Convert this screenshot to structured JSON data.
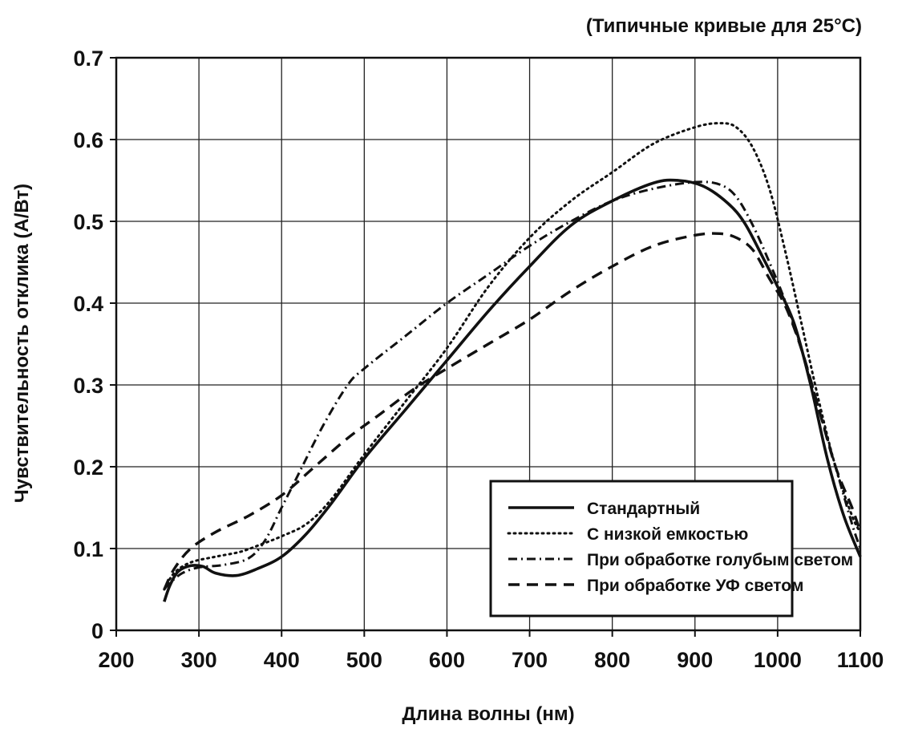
{
  "chart_data": {
    "type": "line",
    "note": "(Типичные кривые для 25°C)",
    "xlabel": "Длина волны (нм)",
    "ylabel": "Чувствительность отклика (А/Вт)",
    "xlim": [
      200,
      1100
    ],
    "ylim": [
      0,
      0.7
    ],
    "x_ticks": [
      "200",
      "300",
      "400",
      "500",
      "600",
      "700",
      "800",
      "900",
      "1000",
      "1100"
    ],
    "y_ticks": [
      "0",
      "0.1",
      "0.2",
      "0.3",
      "0.4",
      "0.5",
      "0.6",
      "0.7"
    ],
    "grid": true,
    "legend_position": "bottom-right",
    "series": [
      {
        "name": "Стандартный",
        "style": "solid",
        "color": "#111111",
        "x": [
          258,
          265,
          275,
          290,
          305,
          320,
          345,
          370,
          400,
          430,
          460,
          500,
          550,
          600,
          650,
          700,
          750,
          800,
          850,
          880,
          910,
          940,
          960,
          980,
          1000,
          1020,
          1040,
          1060,
          1080,
          1100
        ],
        "y": [
          0.035,
          0.055,
          0.072,
          0.079,
          0.078,
          0.07,
          0.067,
          0.075,
          0.09,
          0.118,
          0.155,
          0.21,
          0.27,
          0.33,
          0.39,
          0.445,
          0.495,
          0.525,
          0.547,
          0.55,
          0.543,
          0.522,
          0.498,
          0.46,
          0.42,
          0.375,
          0.3,
          0.21,
          0.14,
          0.09
        ]
      },
      {
        "name": "С низкой емкостью",
        "style": "dotted",
        "color": "#111111",
        "x": [
          258,
          270,
          290,
          320,
          350,
          375,
          400,
          430,
          460,
          500,
          550,
          600,
          650,
          700,
          750,
          800,
          850,
          900,
          930,
          950,
          970,
          990,
          1010,
          1030,
          1050,
          1070,
          1090,
          1100
        ],
        "y": [
          0.05,
          0.07,
          0.083,
          0.09,
          0.096,
          0.105,
          0.115,
          0.13,
          0.16,
          0.215,
          0.28,
          0.345,
          0.42,
          0.48,
          0.525,
          0.56,
          0.595,
          0.615,
          0.62,
          0.615,
          0.59,
          0.54,
          0.46,
          0.37,
          0.28,
          0.2,
          0.14,
          0.12
        ]
      },
      {
        "name": "При обработке голубым светом",
        "style": "dashdot",
        "color": "#111111",
        "x": [
          258,
          265,
          280,
          300,
          330,
          360,
          380,
          400,
          420,
          450,
          480,
          500,
          550,
          600,
          650,
          700,
          750,
          800,
          850,
          900,
          930,
          950,
          970,
          990,
          1010,
          1030,
          1050,
          1070,
          1090,
          1100
        ],
        "y": [
          0.05,
          0.058,
          0.07,
          0.077,
          0.08,
          0.088,
          0.11,
          0.15,
          0.19,
          0.25,
          0.3,
          0.32,
          0.36,
          0.4,
          0.435,
          0.47,
          0.5,
          0.525,
          0.54,
          0.548,
          0.545,
          0.53,
          0.495,
          0.45,
          0.4,
          0.34,
          0.27,
          0.2,
          0.13,
          0.1
        ]
      },
      {
        "name": "При обработке УФ светом",
        "style": "dashed",
        "color": "#111111",
        "x": [
          258,
          270,
          290,
          320,
          360,
          400,
          440,
          480,
          520,
          560,
          600,
          650,
          700,
          750,
          800,
          850,
          900,
          930,
          950,
          970,
          990,
          1010,
          1030,
          1050,
          1070,
          1090,
          1100
        ],
        "y": [
          0.05,
          0.075,
          0.1,
          0.12,
          0.14,
          0.165,
          0.2,
          0.235,
          0.265,
          0.295,
          0.32,
          0.35,
          0.38,
          0.415,
          0.445,
          0.47,
          0.483,
          0.485,
          0.48,
          0.465,
          0.43,
          0.395,
          0.34,
          0.27,
          0.2,
          0.15,
          0.12
        ]
      }
    ]
  }
}
